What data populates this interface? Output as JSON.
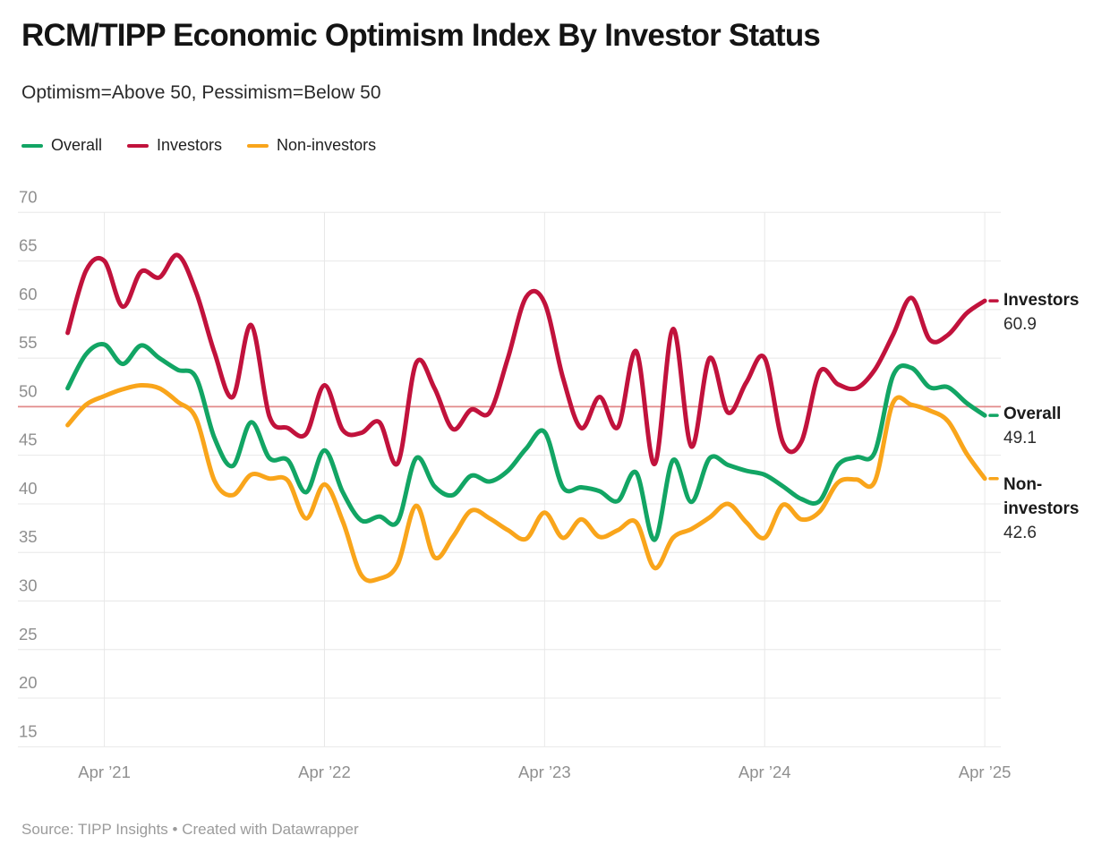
{
  "header": {
    "title": "RCM/TIPP Economic Optimism Index By Investor Status",
    "subtitle": "Optimism=Above 50, Pessimism=Below 50"
  },
  "legend": [
    {
      "label": "Overall",
      "color": "#12a564"
    },
    {
      "label": "Investors",
      "color": "#c1123c"
    },
    {
      "label": "Non-investors",
      "color": "#f9a51b"
    }
  ],
  "footer": {
    "source": "Source: TIPP Insights • Created with Datawrapper"
  },
  "chart_data": {
    "type": "line",
    "title": "RCM/TIPP Economic Optimism Index By Investor Status",
    "subtitle": "Optimism=Above 50, Pessimism=Below 50",
    "x_interval": "monthly",
    "x_start": "Feb 2021",
    "x_end": "Apr 2025",
    "months": [
      "Feb 2021",
      "Mar 2021",
      "Apr 2021",
      "May 2021",
      "Jun 2021",
      "Jul 2021",
      "Aug 2021",
      "Sep 2021",
      "Oct 2021",
      "Nov 2021",
      "Dec 2021",
      "Jan 2022",
      "Feb 2022",
      "Mar 2022",
      "Apr 2022",
      "May 2022",
      "Jun 2022",
      "Jul 2022",
      "Aug 2022",
      "Sep 2022",
      "Oct 2022",
      "Nov 2022",
      "Dec 2022",
      "Jan 2023",
      "Feb 2023",
      "Mar 2023",
      "Apr 2023",
      "May 2023",
      "Jun 2023",
      "Jul 2023",
      "Aug 2023",
      "Sep 2023",
      "Oct 2023",
      "Nov 2023",
      "Dec 2023",
      "Jan 2024",
      "Feb 2024",
      "Mar 2024",
      "Apr 2024",
      "May 2024",
      "Jun 2024",
      "Jul 2024",
      "Aug 2024",
      "Sep 2024",
      "Oct 2024",
      "Nov 2024",
      "Dec 2024",
      "Jan 2025",
      "Feb 2025",
      "Mar 2025",
      "Apr 2025"
    ],
    "x_tick_labels": [
      "Apr ’21",
      "Apr ’22",
      "Apr ’23",
      "Apr ’24",
      "Apr ’25"
    ],
    "x_tick_month_indices": [
      2,
      14,
      26,
      38,
      50
    ],
    "ylim": [
      15,
      70
    ],
    "y_ticks": [
      70,
      65,
      60,
      55,
      50,
      45,
      40,
      35,
      30,
      25,
      20,
      15
    ],
    "grid": true,
    "legend_position": "top",
    "reference_line": {
      "value": 50,
      "color": "#e18a8a"
    },
    "series": [
      {
        "name": "Overall",
        "color": "#12a564",
        "end_label": "Overall",
        "end_value": "49.1",
        "values": [
          51.9,
          55.4,
          56.4,
          54.4,
          56.3,
          55.0,
          53.8,
          53.0,
          46.8,
          43.9,
          48.4,
          44.7,
          44.5,
          41.2,
          45.5,
          41.2,
          38.3,
          38.7,
          38.2,
          44.7,
          41.8,
          40.9,
          42.9,
          42.3,
          43.4,
          45.7,
          47.4,
          41.7,
          41.7,
          41.3,
          40.3,
          43.2,
          36.3,
          44.5,
          40.2,
          44.7,
          44.0,
          43.4,
          43.0,
          41.8,
          40.5,
          40.3,
          44.0,
          44.8,
          45.3,
          53.2,
          54.0,
          52.0,
          52.0,
          50.4,
          49.1
        ]
      },
      {
        "name": "Investors",
        "color": "#c1123c",
        "end_label": "Investors",
        "end_value": "60.9",
        "values": [
          57.6,
          64.0,
          65.0,
          60.3,
          63.9,
          63.3,
          65.6,
          61.8,
          55.6,
          51.0,
          58.4,
          49.0,
          47.8,
          47.2,
          52.2,
          47.6,
          47.3,
          48.4,
          44.2,
          54.5,
          51.9,
          47.7,
          49.7,
          49.4,
          55.0,
          61.3,
          60.7,
          53.0,
          47.8,
          51.0,
          47.9,
          55.7,
          44.1,
          58.0,
          45.9,
          55.0,
          49.4,
          52.5,
          55.0,
          46.3,
          46.4,
          53.6,
          52.3,
          51.9,
          53.8,
          57.4,
          61.2,
          56.9,
          57.4,
          59.6,
          60.9
        ]
      },
      {
        "name": "Non-investors",
        "color": "#f9a51b",
        "end_label": "Non-investors",
        "end_value": "42.6",
        "values": [
          48.1,
          50.2,
          51.1,
          51.8,
          52.2,
          51.9,
          50.5,
          48.8,
          42.4,
          40.9,
          43.0,
          42.6,
          42.4,
          38.5,
          42.0,
          38.2,
          32.7,
          32.3,
          33.8,
          39.8,
          34.5,
          36.6,
          39.3,
          38.5,
          37.3,
          36.4,
          39.1,
          36.5,
          38.4,
          36.6,
          37.3,
          38.1,
          33.4,
          36.5,
          37.4,
          38.6,
          40.0,
          38.1,
          36.5,
          39.9,
          38.4,
          39.2,
          42.2,
          42.5,
          42.3,
          50.4,
          50.2,
          49.6,
          48.5,
          45.2,
          42.6
        ]
      }
    ],
    "axis_text_color": "#8f8f8f",
    "gridline_color": "#e8e8e8"
  }
}
